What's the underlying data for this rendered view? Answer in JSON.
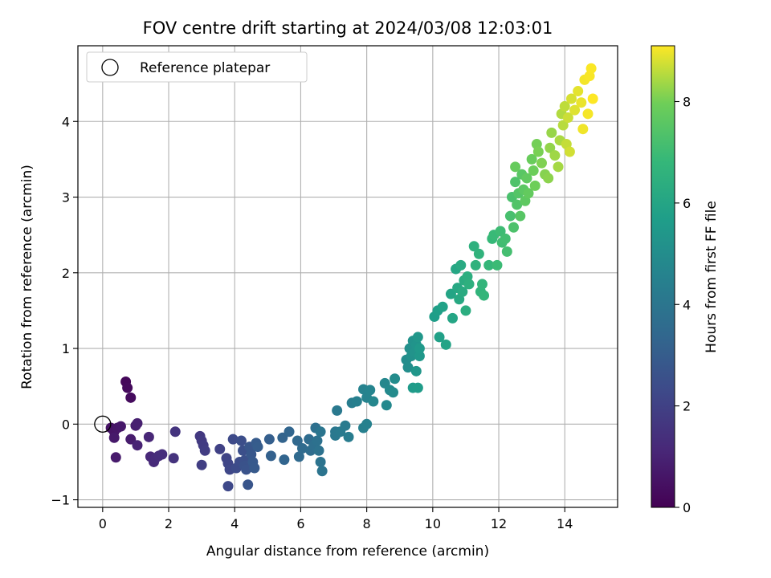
{
  "chart_data": {
    "type": "scatter",
    "title": "FOV centre drift starting at 2024/03/08 12:03:01",
    "xlabel": "Angular distance from reference (arcmin)",
    "ylabel": "Rotation from reference (arcmin)",
    "colorbar_label": "Hours from first FF file",
    "xlim": [
      -0.75,
      15.6
    ],
    "ylim": [
      -1.1,
      5.0
    ],
    "clim": [
      0,
      9.1
    ],
    "colormap": "viridis",
    "x_ticks": [
      0,
      2,
      4,
      6,
      8,
      10,
      12,
      14
    ],
    "y_ticks": [
      -1,
      0,
      1,
      2,
      3,
      4
    ],
    "colorbar_ticks": [
      0,
      2,
      4,
      6,
      8
    ],
    "grid": true,
    "legend": {
      "placement": "top-left",
      "entries": [
        "Reference platepar"
      ]
    },
    "reference_point": {
      "x": 0,
      "y": 0,
      "marker": "open-circle",
      "edge_color": "#000000"
    },
    "points": [
      {
        "x": 0.7,
        "y": 0.56,
        "h": 0.2
      },
      {
        "x": 0.75,
        "y": 0.48,
        "h": 0.25
      },
      {
        "x": 0.85,
        "y": 0.35,
        "h": 0.3
      },
      {
        "x": 0.25,
        "y": -0.05,
        "h": 0.5
      },
      {
        "x": 0.35,
        "y": -0.1,
        "h": 0.55
      },
      {
        "x": 0.45,
        "y": -0.05,
        "h": 0.6
      },
      {
        "x": 0.55,
        "y": -0.03,
        "h": 0.65
      },
      {
        "x": 0.35,
        "y": -0.18,
        "h": 0.7
      },
      {
        "x": 0.4,
        "y": -0.44,
        "h": 0.75
      },
      {
        "x": 0.85,
        "y": -0.2,
        "h": 0.8
      },
      {
        "x": 1.0,
        "y": -0.02,
        "h": 0.85
      },
      {
        "x": 1.05,
        "y": 0.01,
        "h": 0.9
      },
      {
        "x": 1.05,
        "y": -0.28,
        "h": 1.0
      },
      {
        "x": 1.4,
        "y": -0.17,
        "h": 1.1
      },
      {
        "x": 1.45,
        "y": -0.43,
        "h": 1.15
      },
      {
        "x": 1.55,
        "y": -0.5,
        "h": 1.2
      },
      {
        "x": 1.6,
        "y": -0.45,
        "h": 1.25
      },
      {
        "x": 1.7,
        "y": -0.42,
        "h": 1.3
      },
      {
        "x": 1.8,
        "y": -0.4,
        "h": 1.35
      },
      {
        "x": 2.15,
        "y": -0.45,
        "h": 1.5
      },
      {
        "x": 2.2,
        "y": -0.1,
        "h": 1.55
      },
      {
        "x": 2.95,
        "y": -0.16,
        "h": 1.7
      },
      {
        "x": 3.0,
        "y": -0.22,
        "h": 1.75
      },
      {
        "x": 3.05,
        "y": -0.28,
        "h": 1.8
      },
      {
        "x": 3.1,
        "y": -0.35,
        "h": 1.85
      },
      {
        "x": 3.0,
        "y": -0.54,
        "h": 1.9
      },
      {
        "x": 3.55,
        "y": -0.33,
        "h": 2.0
      },
      {
        "x": 3.75,
        "y": -0.45,
        "h": 2.1
      },
      {
        "x": 3.8,
        "y": -0.52,
        "h": 2.15
      },
      {
        "x": 3.85,
        "y": -0.6,
        "h": 2.2
      },
      {
        "x": 3.8,
        "y": -0.82,
        "h": 2.25
      },
      {
        "x": 3.95,
        "y": -0.2,
        "h": 2.3
      },
      {
        "x": 4.05,
        "y": -0.58,
        "h": 2.35
      },
      {
        "x": 4.15,
        "y": -0.5,
        "h": 2.4
      },
      {
        "x": 4.2,
        "y": -0.22,
        "h": 2.45
      },
      {
        "x": 4.25,
        "y": -0.35,
        "h": 2.5
      },
      {
        "x": 4.3,
        "y": -0.48,
        "h": 2.55
      },
      {
        "x": 4.3,
        "y": -0.55,
        "h": 2.6
      },
      {
        "x": 4.35,
        "y": -0.6,
        "h": 2.65
      },
      {
        "x": 4.4,
        "y": -0.8,
        "h": 2.7
      },
      {
        "x": 4.45,
        "y": -0.3,
        "h": 2.75
      },
      {
        "x": 4.5,
        "y": -0.4,
        "h": 2.8
      },
      {
        "x": 4.55,
        "y": -0.5,
        "h": 2.85
      },
      {
        "x": 4.6,
        "y": -0.58,
        "h": 2.9
      },
      {
        "x": 4.65,
        "y": -0.25,
        "h": 2.95
      },
      {
        "x": 4.7,
        "y": -0.3,
        "h": 3.0
      },
      {
        "x": 5.05,
        "y": -0.2,
        "h": 3.1
      },
      {
        "x": 5.1,
        "y": -0.42,
        "h": 3.15
      },
      {
        "x": 5.45,
        "y": -0.18,
        "h": 3.25
      },
      {
        "x": 5.5,
        "y": -0.47,
        "h": 3.3
      },
      {
        "x": 5.65,
        "y": -0.1,
        "h": 3.35
      },
      {
        "x": 5.9,
        "y": -0.22,
        "h": 3.45
      },
      {
        "x": 5.95,
        "y": -0.43,
        "h": 3.5
      },
      {
        "x": 6.05,
        "y": -0.32,
        "h": 3.55
      },
      {
        "x": 6.25,
        "y": -0.2,
        "h": 3.6
      },
      {
        "x": 6.3,
        "y": -0.35,
        "h": 3.65
      },
      {
        "x": 6.4,
        "y": -0.28,
        "h": 3.7
      },
      {
        "x": 6.45,
        "y": -0.05,
        "h": 3.75
      },
      {
        "x": 6.5,
        "y": -0.22,
        "h": 3.8
      },
      {
        "x": 6.55,
        "y": -0.35,
        "h": 3.85
      },
      {
        "x": 6.6,
        "y": -0.5,
        "h": 3.9
      },
      {
        "x": 6.65,
        "y": -0.62,
        "h": 3.95
      },
      {
        "x": 6.6,
        "y": -0.1,
        "h": 4.0
      },
      {
        "x": 7.05,
        "y": -0.1,
        "h": 4.05
      },
      {
        "x": 7.05,
        "y": -0.15,
        "h": 4.1
      },
      {
        "x": 7.1,
        "y": 0.18,
        "h": 4.15
      },
      {
        "x": 7.2,
        "y": -0.1,
        "h": 4.2
      },
      {
        "x": 7.35,
        "y": -0.02,
        "h": 4.25
      },
      {
        "x": 7.45,
        "y": -0.17,
        "h": 4.3
      },
      {
        "x": 7.55,
        "y": 0.28,
        "h": 4.35
      },
      {
        "x": 7.7,
        "y": 0.3,
        "h": 4.4
      },
      {
        "x": 7.9,
        "y": -0.05,
        "h": 4.45
      },
      {
        "x": 8.0,
        "y": 0.0,
        "h": 4.5
      },
      {
        "x": 7.9,
        "y": 0.46,
        "h": 4.55
      },
      {
        "x": 8.0,
        "y": 0.35,
        "h": 4.6
      },
      {
        "x": 8.1,
        "y": 0.45,
        "h": 4.65
      },
      {
        "x": 8.2,
        "y": 0.3,
        "h": 4.7
      },
      {
        "x": 8.55,
        "y": 0.54,
        "h": 4.75
      },
      {
        "x": 8.6,
        "y": 0.25,
        "h": 4.8
      },
      {
        "x": 8.7,
        "y": 0.45,
        "h": 4.85
      },
      {
        "x": 8.8,
        "y": 0.42,
        "h": 4.9
      },
      {
        "x": 8.85,
        "y": 0.6,
        "h": 4.95
      },
      {
        "x": 9.2,
        "y": 0.85,
        "h": 5.0
      },
      {
        "x": 9.25,
        "y": 0.75,
        "h": 5.05
      },
      {
        "x": 9.3,
        "y": 1.0,
        "h": 5.1
      },
      {
        "x": 9.35,
        "y": 0.9,
        "h": 5.15
      },
      {
        "x": 9.4,
        "y": 1.1,
        "h": 5.2
      },
      {
        "x": 9.45,
        "y": 0.95,
        "h": 5.25
      },
      {
        "x": 9.5,
        "y": 1.05,
        "h": 5.3
      },
      {
        "x": 9.5,
        "y": 0.7,
        "h": 5.35
      },
      {
        "x": 9.55,
        "y": 1.15,
        "h": 5.4
      },
      {
        "x": 9.6,
        "y": 0.9,
        "h": 5.45
      },
      {
        "x": 9.6,
        "y": 1.0,
        "h": 5.5
      },
      {
        "x": 9.4,
        "y": 0.48,
        "h": 5.55
      },
      {
        "x": 9.55,
        "y": 0.48,
        "h": 5.6
      },
      {
        "x": 10.05,
        "y": 1.42,
        "h": 5.7
      },
      {
        "x": 10.15,
        "y": 1.5,
        "h": 5.75
      },
      {
        "x": 10.2,
        "y": 1.15,
        "h": 5.8
      },
      {
        "x": 10.3,
        "y": 1.55,
        "h": 5.85
      },
      {
        "x": 10.4,
        "y": 1.05,
        "h": 5.9
      },
      {
        "x": 10.55,
        "y": 1.72,
        "h": 5.95
      },
      {
        "x": 10.6,
        "y": 1.4,
        "h": 6.0
      },
      {
        "x": 10.7,
        "y": 2.05,
        "h": 6.05
      },
      {
        "x": 10.75,
        "y": 1.8,
        "h": 6.1
      },
      {
        "x": 10.8,
        "y": 1.65,
        "h": 6.15
      },
      {
        "x": 10.85,
        "y": 2.1,
        "h": 6.2
      },
      {
        "x": 10.9,
        "y": 1.75,
        "h": 6.25
      },
      {
        "x": 10.95,
        "y": 1.9,
        "h": 6.3
      },
      {
        "x": 11.0,
        "y": 1.5,
        "h": 6.35
      },
      {
        "x": 11.05,
        "y": 1.95,
        "h": 6.4
      },
      {
        "x": 11.1,
        "y": 1.85,
        "h": 6.45
      },
      {
        "x": 11.25,
        "y": 2.35,
        "h": 6.5
      },
      {
        "x": 11.3,
        "y": 2.1,
        "h": 6.55
      },
      {
        "x": 11.4,
        "y": 2.25,
        "h": 6.6
      },
      {
        "x": 11.45,
        "y": 1.75,
        "h": 6.65
      },
      {
        "x": 11.5,
        "y": 1.85,
        "h": 6.7
      },
      {
        "x": 11.55,
        "y": 1.7,
        "h": 6.75
      },
      {
        "x": 11.7,
        "y": 2.1,
        "h": 6.8
      },
      {
        "x": 11.8,
        "y": 2.45,
        "h": 6.85
      },
      {
        "x": 11.85,
        "y": 2.5,
        "h": 6.9
      },
      {
        "x": 11.95,
        "y": 2.1,
        "h": 6.95
      },
      {
        "x": 12.05,
        "y": 2.55,
        "h": 7.0
      },
      {
        "x": 12.1,
        "y": 2.4,
        "h": 7.05
      },
      {
        "x": 12.2,
        "y": 2.45,
        "h": 7.1
      },
      {
        "x": 12.25,
        "y": 2.28,
        "h": 7.15
      },
      {
        "x": 12.35,
        "y": 2.75,
        "h": 7.2
      },
      {
        "x": 12.4,
        "y": 3.0,
        "h": 7.25
      },
      {
        "x": 12.45,
        "y": 2.6,
        "h": 7.3
      },
      {
        "x": 12.5,
        "y": 3.2,
        "h": 7.35
      },
      {
        "x": 12.55,
        "y": 2.9,
        "h": 7.4
      },
      {
        "x": 12.6,
        "y": 3.05,
        "h": 7.45
      },
      {
        "x": 12.65,
        "y": 2.75,
        "h": 7.5
      },
      {
        "x": 12.7,
        "y": 3.3,
        "h": 7.55
      },
      {
        "x": 12.75,
        "y": 3.1,
        "h": 7.6
      },
      {
        "x": 12.8,
        "y": 2.95,
        "h": 7.65
      },
      {
        "x": 12.85,
        "y": 3.25,
        "h": 7.7
      },
      {
        "x": 12.9,
        "y": 3.05,
        "h": 7.75
      },
      {
        "x": 12.5,
        "y": 3.4,
        "h": 7.8
      },
      {
        "x": 13.0,
        "y": 3.5,
        "h": 7.85
      },
      {
        "x": 13.05,
        "y": 3.35,
        "h": 7.9
      },
      {
        "x": 13.1,
        "y": 3.15,
        "h": 7.95
      },
      {
        "x": 13.15,
        "y": 3.7,
        "h": 8.0
      },
      {
        "x": 13.2,
        "y": 3.6,
        "h": 8.05
      },
      {
        "x": 13.3,
        "y": 3.45,
        "h": 8.1
      },
      {
        "x": 13.4,
        "y": 3.3,
        "h": 8.15
      },
      {
        "x": 13.5,
        "y": 3.25,
        "h": 8.2
      },
      {
        "x": 13.55,
        "y": 3.65,
        "h": 8.25
      },
      {
        "x": 13.6,
        "y": 3.85,
        "h": 8.3
      },
      {
        "x": 13.7,
        "y": 3.55,
        "h": 8.35
      },
      {
        "x": 13.8,
        "y": 3.4,
        "h": 8.4
      },
      {
        "x": 13.85,
        "y": 3.75,
        "h": 8.45
      },
      {
        "x": 13.9,
        "y": 4.1,
        "h": 8.5
      },
      {
        "x": 13.95,
        "y": 3.95,
        "h": 8.55
      },
      {
        "x": 14.0,
        "y": 4.2,
        "h": 8.6
      },
      {
        "x": 14.05,
        "y": 3.7,
        "h": 8.65
      },
      {
        "x": 14.1,
        "y": 4.05,
        "h": 8.7
      },
      {
        "x": 14.15,
        "y": 3.6,
        "h": 8.75
      },
      {
        "x": 14.2,
        "y": 4.3,
        "h": 8.8
      },
      {
        "x": 14.3,
        "y": 4.15,
        "h": 8.85
      },
      {
        "x": 14.4,
        "y": 4.4,
        "h": 8.9
      },
      {
        "x": 14.5,
        "y": 4.25,
        "h": 8.95
      },
      {
        "x": 14.55,
        "y": 3.9,
        "h": 9.0
      },
      {
        "x": 14.6,
        "y": 4.55,
        "h": 9.02
      },
      {
        "x": 14.7,
        "y": 4.1,
        "h": 9.04
      },
      {
        "x": 14.75,
        "y": 4.6,
        "h": 9.06
      },
      {
        "x": 14.8,
        "y": 4.7,
        "h": 9.08
      },
      {
        "x": 14.85,
        "y": 4.3,
        "h": 9.1
      }
    ]
  }
}
